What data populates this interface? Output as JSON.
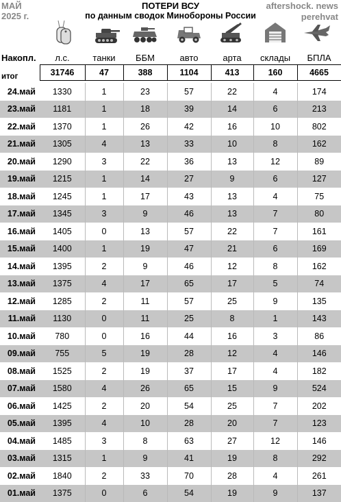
{
  "header": {
    "month": "МАЙ",
    "year": "2025 г.",
    "title": "ПОТЕРИ ВСУ",
    "subtitle": "по данным сводок Минобороны России",
    "source1": "aftershock. news",
    "source2": "perehvat"
  },
  "icons": [
    "dog-tag-icon",
    "tank-icon",
    "armored-vehicle-icon",
    "jeep-icon",
    "artillery-icon",
    "warehouse-icon",
    "drone-icon"
  ],
  "columns": {
    "row_label": "Накопл.",
    "total_label": "итог",
    "headers": [
      "л.с.",
      "танки",
      "ББМ",
      "авто",
      "арта",
      "склады",
      "БПЛА"
    ]
  },
  "totals": [
    "31746",
    "47",
    "388",
    "1104",
    "413",
    "160",
    "4665"
  ],
  "rows": [
    {
      "date": "24.май",
      "v": [
        "1330",
        "1",
        "23",
        "57",
        "22",
        "4",
        "174"
      ]
    },
    {
      "date": "23.май",
      "v": [
        "1181",
        "1",
        "18",
        "39",
        "14",
        "6",
        "213"
      ]
    },
    {
      "date": "22.май",
      "v": [
        "1370",
        "1",
        "26",
        "42",
        "16",
        "10",
        "802"
      ]
    },
    {
      "date": "21.май",
      "v": [
        "1305",
        "4",
        "13",
        "33",
        "10",
        "8",
        "162"
      ]
    },
    {
      "date": "20.май",
      "v": [
        "1290",
        "3",
        "22",
        "36",
        "13",
        "12",
        "89"
      ]
    },
    {
      "date": "19.май",
      "v": [
        "1215",
        "1",
        "14",
        "27",
        "9",
        "6",
        "127"
      ]
    },
    {
      "date": "18.май",
      "v": [
        "1245",
        "1",
        "17",
        "43",
        "13",
        "4",
        "75"
      ]
    },
    {
      "date": "17.май",
      "v": [
        "1345",
        "3",
        "9",
        "46",
        "13",
        "7",
        "80"
      ]
    },
    {
      "date": "16.май",
      "v": [
        "1405",
        "0",
        "13",
        "57",
        "22",
        "7",
        "161"
      ]
    },
    {
      "date": "15.май",
      "v": [
        "1400",
        "1",
        "19",
        "47",
        "21",
        "6",
        "169"
      ]
    },
    {
      "date": "14.май",
      "v": [
        "1395",
        "2",
        "9",
        "46",
        "12",
        "8",
        "162"
      ]
    },
    {
      "date": "13.май",
      "v": [
        "1375",
        "4",
        "17",
        "65",
        "17",
        "5",
        "74"
      ]
    },
    {
      "date": "12.май",
      "v": [
        "1285",
        "2",
        "11",
        "57",
        "25",
        "9",
        "135"
      ]
    },
    {
      "date": "11.май",
      "v": [
        "1130",
        "0",
        "11",
        "25",
        "8",
        "1",
        "143"
      ]
    },
    {
      "date": "10.май",
      "v": [
        "780",
        "0",
        "16",
        "44",
        "16",
        "3",
        "86"
      ]
    },
    {
      "date": "09.май",
      "v": [
        "755",
        "5",
        "19",
        "28",
        "12",
        "4",
        "146"
      ]
    },
    {
      "date": "08.май",
      "v": [
        "1525",
        "2",
        "19",
        "37",
        "17",
        "4",
        "182"
      ]
    },
    {
      "date": "07.май",
      "v": [
        "1580",
        "4",
        "26",
        "65",
        "15",
        "9",
        "524"
      ]
    },
    {
      "date": "06.май",
      "v": [
        "1425",
        "2",
        "20",
        "54",
        "25",
        "7",
        "202"
      ]
    },
    {
      "date": "05.май",
      "v": [
        "1395",
        "4",
        "10",
        "28",
        "20",
        "7",
        "123"
      ]
    },
    {
      "date": "04.май",
      "v": [
        "1485",
        "3",
        "8",
        "63",
        "27",
        "12",
        "146"
      ]
    },
    {
      "date": "03.май",
      "v": [
        "1315",
        "1",
        "9",
        "41",
        "19",
        "8",
        "292"
      ]
    },
    {
      "date": "02.май",
      "v": [
        "1840",
        "2",
        "33",
        "70",
        "28",
        "4",
        "261"
      ]
    },
    {
      "date": "01.май",
      "v": [
        "1375",
        "0",
        "6",
        "54",
        "19",
        "9",
        "137"
      ]
    }
  ]
}
